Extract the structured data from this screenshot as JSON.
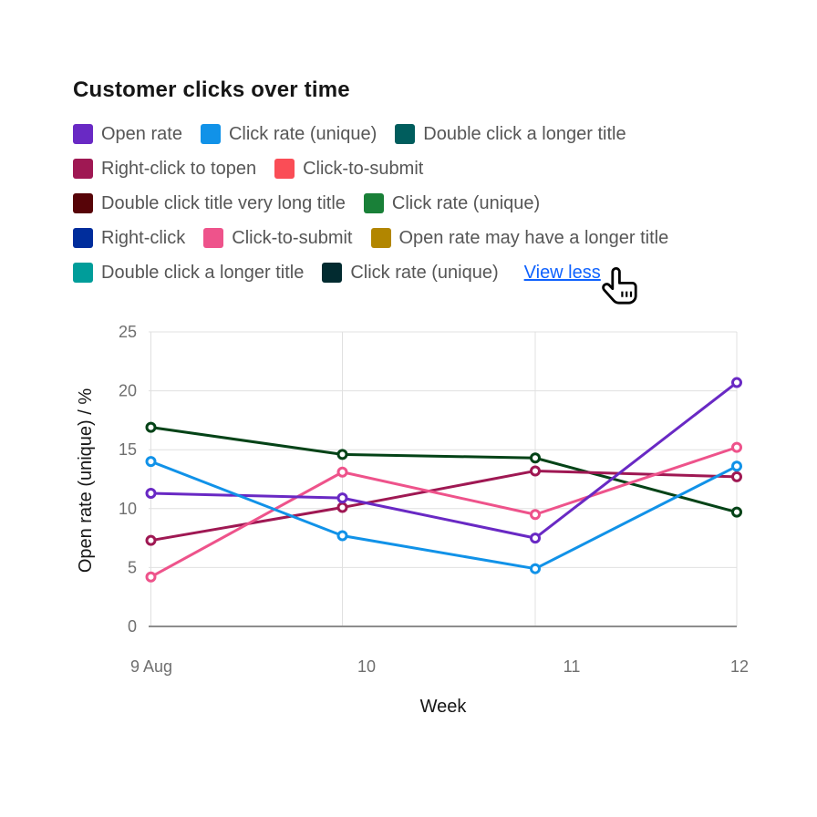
{
  "header": {
    "title": "Customer clicks over time"
  },
  "legend": {
    "rows": [
      [
        {
          "label": "Open rate",
          "color": "#6929c4"
        },
        {
          "label": "Click rate (unique)",
          "color": "#1192e8"
        },
        {
          "label": "Double click a longer title",
          "color": "#005d5d"
        }
      ],
      [
        {
          "label": "Right-click to topen",
          "color": "#9f1853"
        },
        {
          "label": "Click-to-submit",
          "color": "#fa4d56"
        }
      ],
      [
        {
          "label": "Double click title very long title",
          "color": "#570408"
        },
        {
          "label": "Click rate (unique)",
          "color": "#198038"
        }
      ],
      [
        {
          "label": "Right-click",
          "color": "#002d9c"
        },
        {
          "label": "Click-to-submit",
          "color": "#ee538b"
        },
        {
          "label": "Open rate may have a longer title",
          "color": "#b28600"
        }
      ],
      [
        {
          "label": "Double click a longer title",
          "color": "#009d9a"
        },
        {
          "label": "Click rate (unique)",
          "color": "#022b30"
        }
      ]
    ],
    "view_less_label": "View less",
    "link_color": "#0f62fe"
  },
  "chart_data": {
    "type": "line",
    "title": "Customer clicks over time",
    "xlabel": "Week",
    "ylabel": "Open rate (unique) / %",
    "x_tick_labels": [
      "9 Aug",
      "10",
      "11",
      "12"
    ],
    "y_ticks": [
      0,
      5,
      10,
      15,
      20,
      25
    ],
    "ylim": [
      0,
      25
    ],
    "grid": true,
    "legend_position": "top",
    "point_style": "hollow-circle",
    "series": [
      {
        "name": "Double click a longer title",
        "color": "#044317",
        "values": [
          16.9,
          14.6,
          14.3,
          9.7
        ]
      },
      {
        "name": "Right-click to topen",
        "color": "#9f1853",
        "values": [
          7.3,
          10.1,
          13.2,
          12.7
        ]
      },
      {
        "name": "Click-to-submit",
        "color": "#ee538b",
        "values": [
          4.2,
          13.1,
          9.5,
          15.2
        ]
      },
      {
        "name": "Open rate",
        "color": "#6929c4",
        "values": [
          11.3,
          10.9,
          7.5,
          20.7
        ]
      },
      {
        "name": "Click rate (unique)",
        "color": "#1192e8",
        "values": [
          14.0,
          7.7,
          4.9,
          13.6
        ]
      }
    ],
    "colors": {
      "gridline": "#e0e0e0",
      "axis_line": "#8d8d8d",
      "tick_text": "#6f6f6f",
      "axis_title_text": "#161616"
    }
  },
  "cursor": {
    "type": "hand-pointer"
  }
}
